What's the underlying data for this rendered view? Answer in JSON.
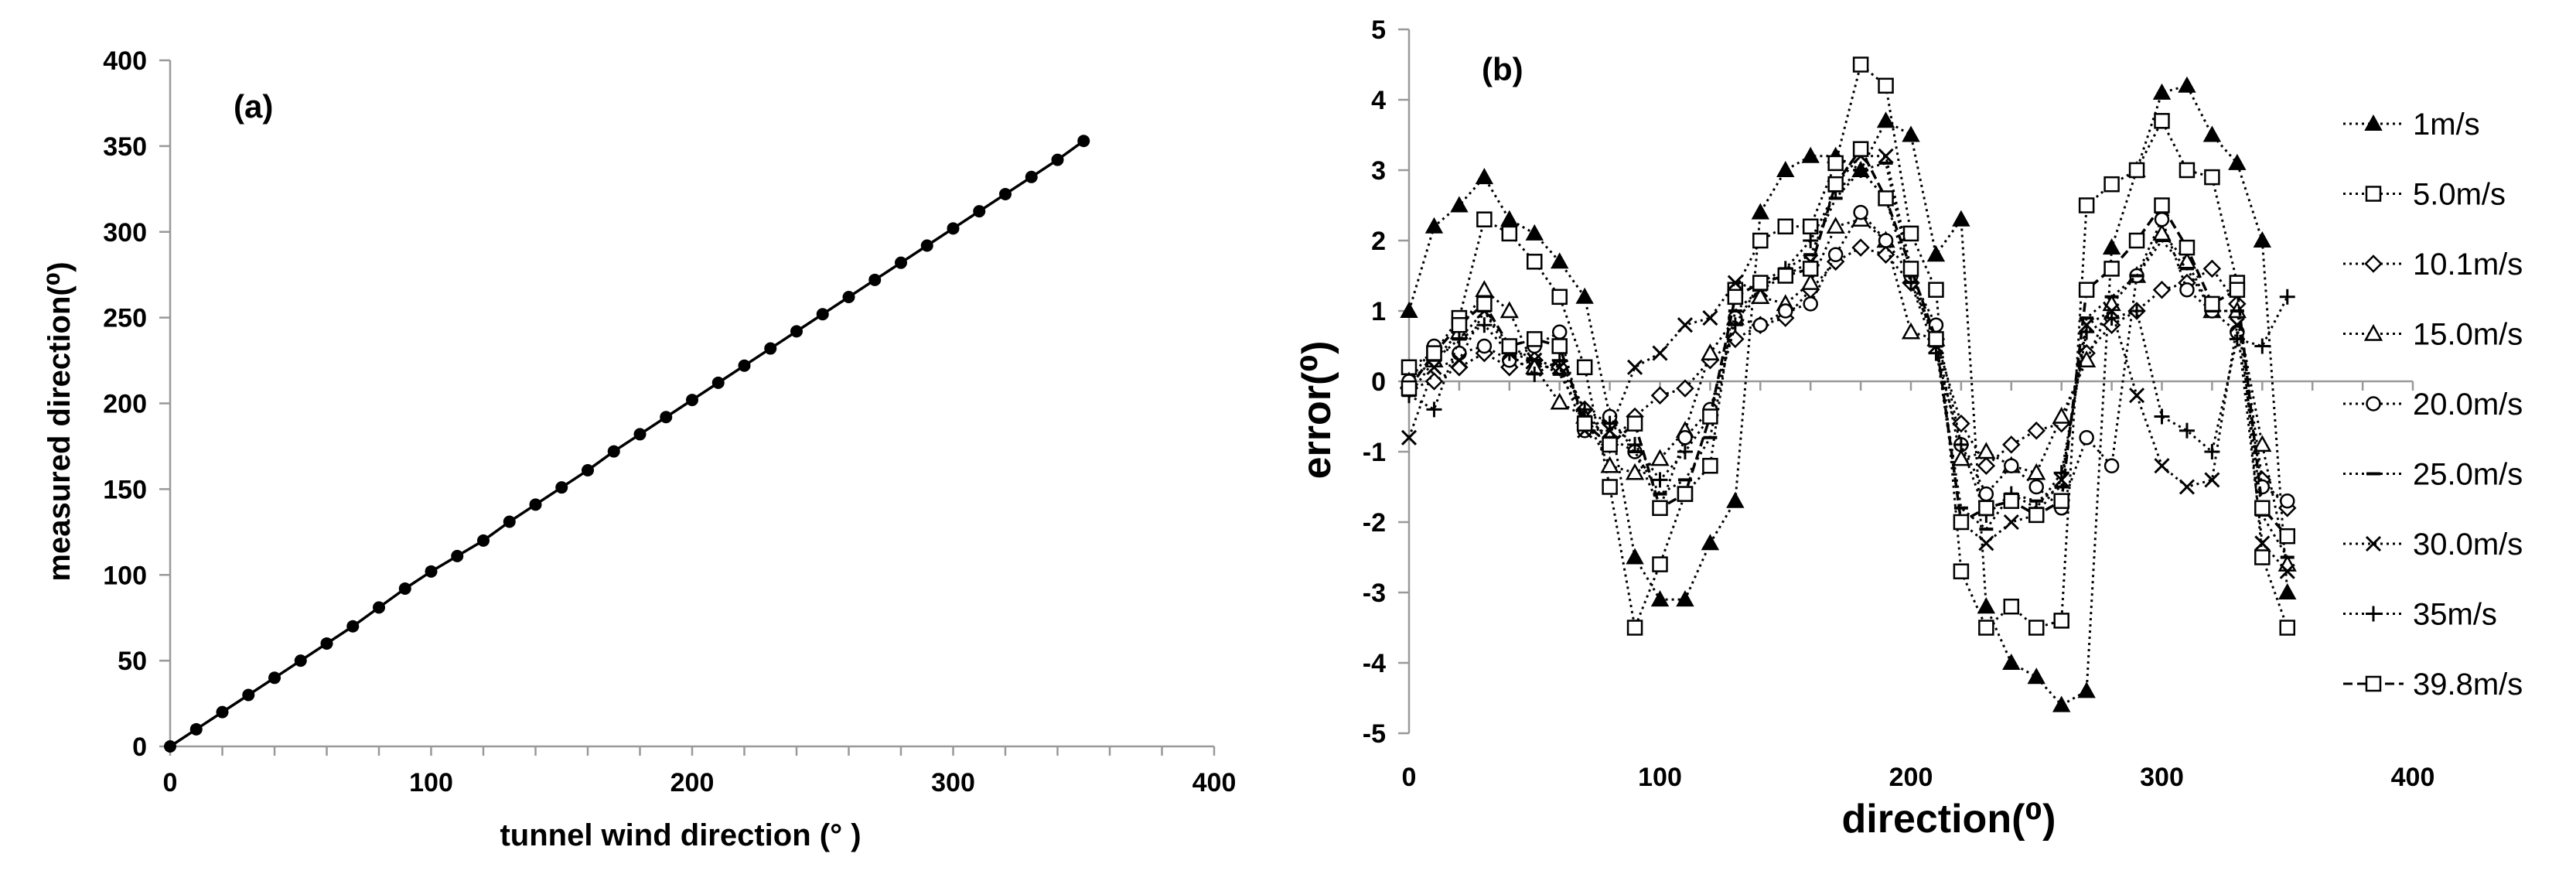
{
  "chart_data": [
    {
      "type": "line",
      "panel_label": "(a)",
      "xlabel": "tunnel wind direction (°  )",
      "ylabel": "measured direction(⁰)",
      "xlim": [
        0,
        400
      ],
      "ylim": [
        0,
        400
      ],
      "xticks": [
        "0",
        "100",
        "200",
        "300",
        "400"
      ],
      "yticks": [
        "0",
        "50",
        "100",
        "150",
        "200",
        "250",
        "300",
        "350",
        "400"
      ],
      "grid": false,
      "series": [
        {
          "name": "measured",
          "x": [
            0,
            10,
            20,
            30,
            40,
            50,
            60,
            70,
            80,
            90,
            100,
            110,
            120,
            130,
            140,
            150,
            160,
            170,
            180,
            190,
            200,
            210,
            220,
            230,
            240,
            250,
            260,
            270,
            280,
            290,
            300,
            310,
            320,
            330,
            340,
            350
          ],
          "values": [
            0,
            10,
            20,
            30,
            40,
            50,
            60,
            70,
            81,
            92,
            102,
            111,
            120,
            131,
            141,
            151,
            161,
            172,
            182,
            192,
            202,
            212,
            222,
            232,
            242,
            252,
            262,
            272,
            282,
            292,
            302,
            312,
            322,
            332,
            342,
            353
          ]
        }
      ]
    },
    {
      "type": "line",
      "panel_label": "(b)",
      "xlabel": "direction(⁰)",
      "ylabel": "error(⁰)",
      "xlim": [
        0,
        400
      ],
      "ylim": [
        -5,
        5
      ],
      "xticks": [
        "0",
        "100",
        "200",
        "300",
        "400"
      ],
      "yticks": [
        "-5",
        "-4",
        "-3",
        "-2",
        "-1",
        "0",
        "1",
        "2",
        "3",
        "4",
        "5"
      ],
      "grid": false,
      "legend_position": "right",
      "x": [
        0,
        10,
        20,
        30,
        40,
        50,
        60,
        70,
        80,
        90,
        100,
        110,
        120,
        130,
        140,
        150,
        160,
        170,
        180,
        190,
        200,
        210,
        220,
        230,
        240,
        250,
        260,
        270,
        280,
        290,
        300,
        310,
        320,
        330,
        340,
        350
      ],
      "series": [
        {
          "name": "1m/s",
          "marker": "triangle-filled",
          "dash": "dot",
          "values": [
            1.0,
            2.2,
            2.5,
            2.9,
            2.3,
            2.1,
            1.7,
            1.2,
            -0.5,
            -2.5,
            -3.1,
            -3.1,
            -2.3,
            -1.7,
            2.4,
            3.0,
            3.2,
            3.2,
            3.0,
            3.7,
            3.5,
            1.8,
            2.3,
            -3.2,
            -4.0,
            -4.2,
            -4.6,
            -4.4,
            1.9,
            3.0,
            4.1,
            4.2,
            3.5,
            3.1,
            2.0,
            -3.0
          ]
        },
        {
          "name": "5.0m/s",
          "marker": "square-open",
          "dash": "dot",
          "values": [
            0.2,
            0.4,
            0.9,
            2.3,
            2.1,
            1.7,
            1.2,
            0.2,
            -1.5,
            -3.5,
            -2.6,
            -1.6,
            -1.2,
            1.3,
            2.0,
            2.2,
            2.2,
            3.1,
            4.5,
            4.2,
            2.1,
            1.3,
            -2.7,
            -3.5,
            -3.2,
            -3.5,
            -3.4,
            2.5,
            2.8,
            3.0,
            3.7,
            3.0,
            2.9,
            1.4,
            -2.5,
            -3.5
          ]
        },
        {
          "name": "10.1m/s",
          "marker": "diamond-open",
          "dash": "dot",
          "values": [
            -0.1,
            0.0,
            0.2,
            0.4,
            0.2,
            0.3,
            0.2,
            -0.4,
            -0.9,
            -0.5,
            -0.2,
            -0.1,
            0.3,
            0.6,
            0.8,
            0.9,
            1.3,
            1.7,
            1.9,
            1.8,
            1.4,
            0.6,
            -0.6,
            -1.2,
            -0.9,
            -0.7,
            -0.6,
            0.4,
            0.8,
            1.0,
            1.3,
            1.4,
            1.6,
            1.1,
            -1.4,
            -1.8
          ]
        },
        {
          "name": "15.0m/s",
          "marker": "triangle-open",
          "dash": "dot",
          "values": [
            0.0,
            0.3,
            0.7,
            1.3,
            1.0,
            0.2,
            -0.3,
            -0.5,
            -1.2,
            -1.3,
            -1.1,
            -0.7,
            0.4,
            0.9,
            1.2,
            1.1,
            1.4,
            2.2,
            2.3,
            2.0,
            0.7,
            0.6,
            -1.1,
            -1.0,
            -1.2,
            -1.3,
            -0.5,
            0.3,
            1.1,
            1.5,
            2.1,
            1.7,
            1.0,
            1.0,
            -0.9,
            -2.6
          ]
        },
        {
          "name": "20.0m/s",
          "marker": "circle-open",
          "dash": "dot",
          "values": [
            0.0,
            0.5,
            0.4,
            0.5,
            0.3,
            0.5,
            0.7,
            -0.7,
            -0.5,
            -1.0,
            -1.8,
            -0.8,
            -0.4,
            0.9,
            0.8,
            1.0,
            1.1,
            1.8,
            2.4,
            2.0,
            1.5,
            0.8,
            -0.9,
            -1.6,
            -1.2,
            -1.5,
            -1.8,
            -0.8,
            -1.2,
            1.5,
            2.3,
            1.3,
            1.0,
            0.7,
            -1.5,
            -1.7
          ]
        },
        {
          "name": "25.0m/s",
          "marker": "dash",
          "dash": "dot",
          "values": [
            -0.2,
            0.3,
            0.6,
            1.0,
            0.5,
            0.3,
            0.1,
            -0.5,
            -0.8,
            -1.0,
            -1.6,
            -1.4,
            -0.8,
            1.0,
            1.3,
            1.6,
            1.8,
            2.6,
            3.0,
            3.1,
            1.5,
            0.5,
            -1.8,
            -2.1,
            -1.6,
            -1.7,
            -1.5,
            0.9,
            1.2,
            1.5,
            2.0,
            1.6,
            1.0,
            1.0,
            -1.9,
            -2.5
          ]
        },
        {
          "name": "30.0m/s",
          "marker": "cross",
          "dash": "dot",
          "values": [
            -0.8,
            0.2,
            0.3,
            1.0,
            0.4,
            0.3,
            0.2,
            -0.7,
            -0.7,
            0.2,
            0.4,
            0.8,
            0.9,
            1.4,
            1.3,
            1.5,
            1.7,
            2.8,
            3.2,
            3.2,
            1.6,
            0.5,
            -2.0,
            -2.3,
            -2.0,
            -1.9,
            -1.4,
            0.8,
            1.0,
            -0.2,
            -1.2,
            -1.5,
            -1.4,
            0.8,
            -2.3,
            -2.7
          ]
        },
        {
          "name": "35m/s",
          "marker": "plus",
          "dash": "dot",
          "values": [
            -0.2,
            -0.4,
            0.6,
            0.8,
            0.4,
            0.1,
            0.3,
            -0.4,
            -0.6,
            -0.9,
            -1.4,
            -1.0,
            -0.5,
            0.8,
            1.4,
            1.6,
            2.0,
            2.7,
            3.0,
            2.6,
            1.4,
            0.4,
            -0.9,
            -1.9,
            -1.6,
            -1.8,
            -1.3,
            0.7,
            0.9,
            1.0,
            -0.5,
            -0.7,
            -1.0,
            0.6,
            0.5,
            1.2
          ]
        },
        {
          "name": "39.8m/s",
          "marker": "square-open",
          "dash": "dash",
          "values": [
            -0.1,
            0.4,
            0.8,
            1.1,
            0.5,
            0.6,
            0.5,
            -0.6,
            -0.9,
            -0.6,
            -1.8,
            -1.6,
            -0.5,
            1.2,
            1.4,
            1.5,
            1.6,
            2.8,
            3.3,
            2.6,
            1.6,
            0.6,
            -2.0,
            -1.8,
            -1.7,
            -1.9,
            -1.7,
            1.3,
            1.6,
            2.0,
            2.5,
            1.9,
            1.1,
            1.3,
            -1.8,
            -2.2
          ]
        }
      ]
    }
  ]
}
